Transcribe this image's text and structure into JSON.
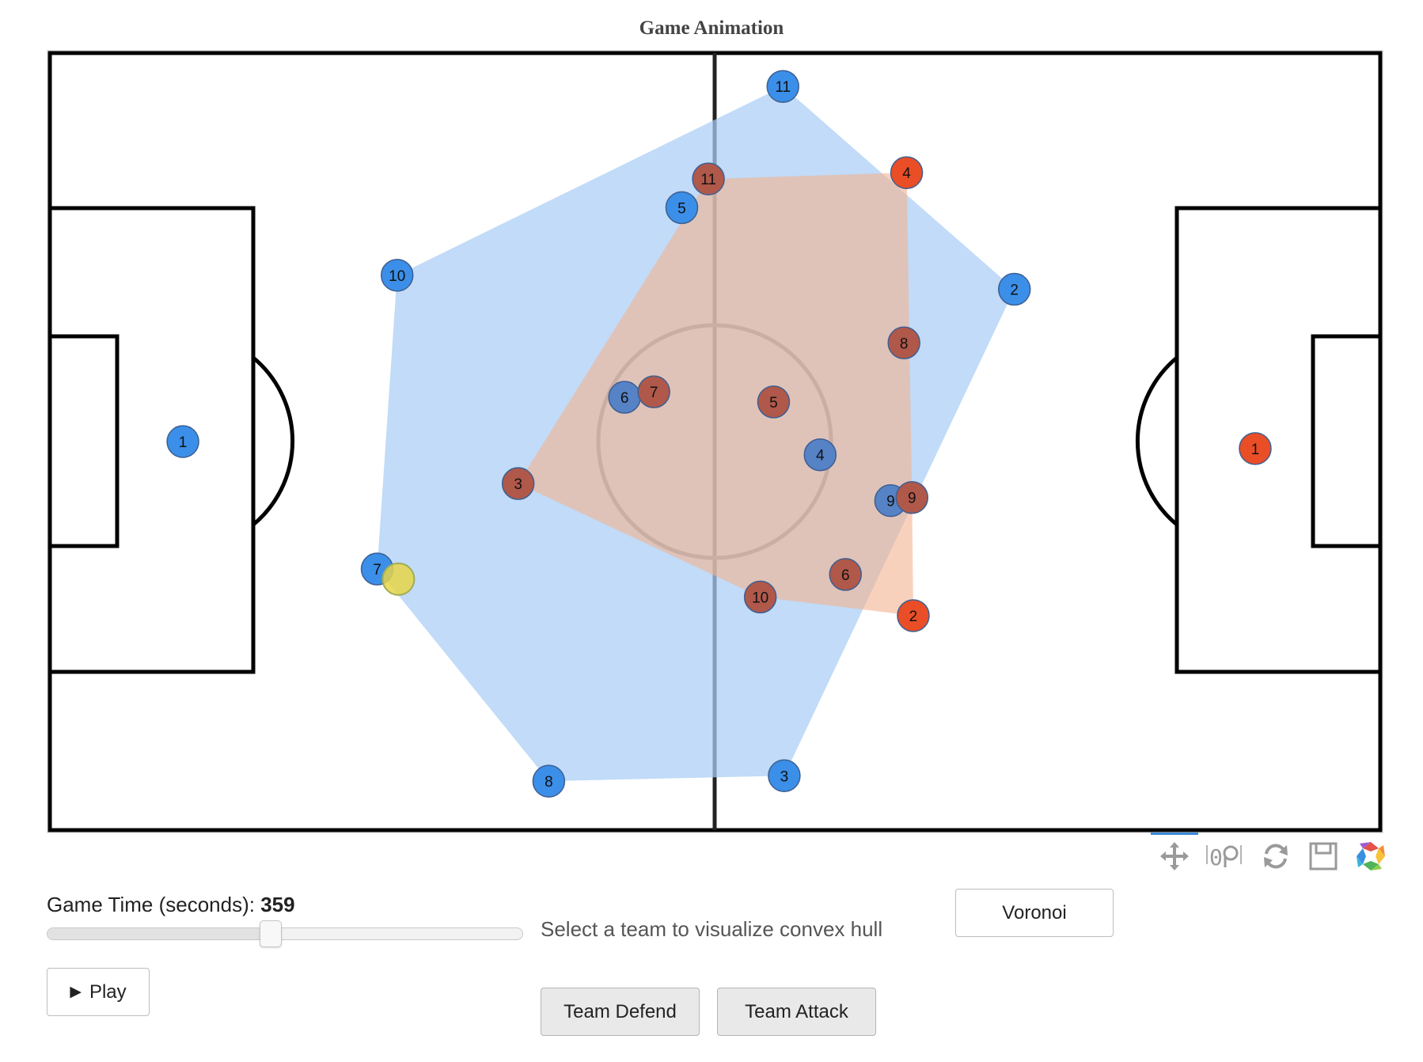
{
  "title": "Game Animation",
  "colors": {
    "defend": "#3b8fe8",
    "defend_hull": "#a9cdf5",
    "attack": "#ea4e26",
    "attack_hull": "#f4b28f",
    "overlap_marker": "#b0584a",
    "ball": "#e8d548",
    "ball_edge": "#9fae55"
  },
  "pitch": {
    "team_defend": [
      {
        "label": "1",
        "x": 10.0,
        "y": 50.0
      },
      {
        "label": "2",
        "x": 72.5,
        "y": 30.4
      },
      {
        "label": "3",
        "x": 55.2,
        "y": 93.0
      },
      {
        "label": "4",
        "x": 57.9,
        "y": 51.7
      },
      {
        "label": "5",
        "x": 47.5,
        "y": 19.9
      },
      {
        "label": "6",
        "x": 43.2,
        "y": 44.3
      },
      {
        "label": "7",
        "x": 24.6,
        "y": 66.4
      },
      {
        "label": "8",
        "x": 37.5,
        "y": 93.7
      },
      {
        "label": "9",
        "x": 63.2,
        "y": 57.6
      },
      {
        "label": "10",
        "x": 26.1,
        "y": 28.6
      },
      {
        "label": "11",
        "x": 55.1,
        "y": 4.3
      }
    ],
    "team_attack": [
      {
        "label": "1",
        "x": 90.6,
        "y": 50.9
      },
      {
        "label": "2",
        "x": 64.9,
        "y": 72.4
      },
      {
        "label": "3",
        "x": 35.2,
        "y": 55.4
      },
      {
        "label": "4",
        "x": 64.4,
        "y": 15.4
      },
      {
        "label": "5",
        "x": 54.4,
        "y": 44.9
      },
      {
        "label": "6",
        "x": 59.8,
        "y": 67.1
      },
      {
        "label": "7",
        "x": 45.4,
        "y": 43.6
      },
      {
        "label": "8",
        "x": 64.2,
        "y": 37.3
      },
      {
        "label": "9",
        "x": 64.8,
        "y": 57.2
      },
      {
        "label": "10",
        "x": 53.4,
        "y": 70.0
      },
      {
        "label": "11",
        "x": 49.5,
        "y": 16.2
      }
    ],
    "ball": {
      "x": 26.2,
      "y": 67.7
    }
  },
  "toolbar": {
    "icons": [
      "pan-icon",
      "wheel-zoom-icon",
      "reset-icon",
      "save-icon",
      "bokeh-logo-icon"
    ]
  },
  "controls": {
    "time_label": "Game Time (seconds):",
    "time_value": "359",
    "slider_fraction": 0.47,
    "play_label": "Play",
    "hull_hint": "Select a team to visualize convex hull",
    "voronoi_label": "Voronoi",
    "defend_label": "Team Defend",
    "attack_label": "Team Attack"
  }
}
